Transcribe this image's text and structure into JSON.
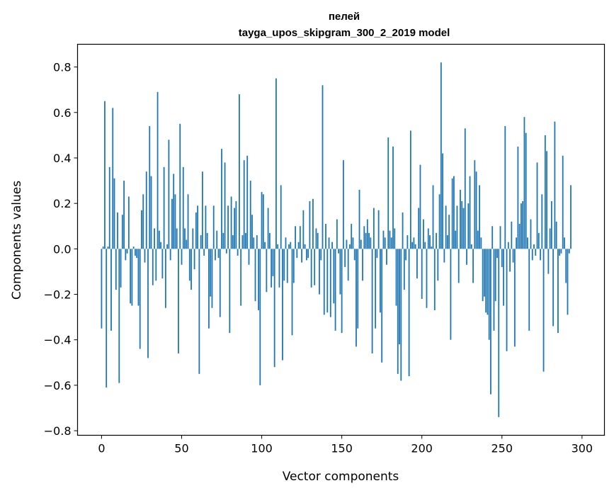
{
  "chart_data": {
    "type": "bar",
    "title": "пелей",
    "subtitle": "tayga_upos_skipgram_300_2_2019 model",
    "xlabel": "Vector components",
    "ylabel": "Components values",
    "xlim": [
      -15,
      314
    ],
    "ylim": [
      -0.82,
      0.9
    ],
    "xticks": [
      0,
      50,
      100,
      150,
      200,
      250,
      300
    ],
    "yticks": [
      -0.8,
      -0.6,
      -0.4,
      -0.2,
      0.0,
      0.2,
      0.4,
      0.6,
      0.8
    ],
    "ytick_labels": [
      "−0.8",
      "−0.6",
      "−0.4",
      "−0.2",
      "0.0",
      "0.2",
      "0.4",
      "0.6",
      "0.8"
    ],
    "grid": false,
    "bar_color": "#1f77b4",
    "values": [
      -0.35,
      0.01,
      0.65,
      -0.61,
      0.01,
      0.36,
      -0.36,
      0.62,
      0.31,
      -0.18,
      0.16,
      -0.59,
      -0.17,
      0.15,
      0.3,
      -0.05,
      -0.02,
      0.23,
      -0.24,
      -0.25,
      0.01,
      -0.03,
      -0.04,
      -0.25,
      -0.44,
      0.17,
      0.24,
      -0.06,
      0.34,
      -0.48,
      0.54,
      0.32,
      -0.16,
      0.09,
      -0.14,
      0.69,
      0.08,
      0.03,
      -0.13,
      0.36,
      -0.26,
      0.02,
      0.48,
      -0.05,
      0.22,
      0.33,
      0.24,
      0.09,
      -0.46,
      0.55,
      -0.07,
      0.36,
      0.09,
      0.04,
      0.24,
      -0.14,
      -0.18,
      0.09,
      -0.09,
      0.16,
      0.19,
      -0.55,
      0.06,
      0.34,
      -0.03,
      0.19,
      0.07,
      -0.35,
      -0.21,
      -0.26,
      0.19,
      -0.05,
      0.08,
      -0.04,
      -0.3,
      0.44,
      0.07,
      0.38,
      -0.02,
      0.19,
      -0.37,
      0.23,
      0.06,
      0.18,
      0.21,
      -0.03,
      0.68,
      -0.25,
      0.06,
      0.39,
      0.07,
      0.41,
      -0.07,
      0.3,
      0.15,
      0.05,
      -0.23,
      0.06,
      -0.27,
      -0.6,
      0.25,
      0.24,
      0.03,
      -0.19,
      0.18,
      0.07,
      -0.17,
      -0.12,
      -0.52,
      0.75,
      0.02,
      -0.17,
      0.28,
      -0.49,
      -0.14,
      0.05,
      -0.15,
      0.02,
      0.03,
      -0.38,
      -0.15,
      0.1,
      -0.04,
      0.03,
      0.1,
      -0.06,
      0.17,
      0.02,
      -0.05,
      -0.04,
      0.21,
      -0.17,
      0.22,
      -0.16,
      0.09,
      0.07,
      -0.2,
      -0.05,
      0.72,
      -0.29,
      0.11,
      -0.28,
      0.05,
      -0.3,
      0.03,
      -0.24,
      -0.36,
      0.13,
      -0.02,
      -0.2,
      -0.37,
      0.39,
      -0.08,
      0.04,
      -0.14,
      0.02,
      0.11,
      0.05,
      -0.05,
      -0.43,
      -0.35,
      0.26,
      0.04,
      -0.14,
      0.1,
      0.07,
      0.13,
      0.07,
      0.05,
      -0.46,
      0.18,
      -0.35,
      -0.04,
      0.17,
      -0.28,
      -0.5,
      0.08,
      0.05,
      -0.07,
      0.49,
      0.08,
      0.05,
      0.45,
      0.09,
      -0.25,
      -0.55,
      -0.42,
      -0.58,
      0.16,
      -0.18,
      -0.05,
      0.06,
      -0.56,
      0.52,
      0.03,
      0.05,
      0.02,
      -0.13,
      0.18,
      0.37,
      -0.22,
      0.13,
      0.03,
      -0.26,
      0.09,
      0.06,
      0.01,
      0.28,
      -0.27,
      0.07,
      -0.14,
      0.24,
      0.82,
      0.42,
      -0.06,
      0.19,
      0.06,
      0.15,
      -0.4,
      0.31,
      0.32,
      0.08,
      0.19,
      -0.15,
      0.26,
      0.21,
      0.18,
      0.53,
      -0.07,
      0.2,
      0.32,
      0.02,
      -0.15,
      0.39,
      0.34,
      0.08,
      0.28,
      0.05,
      -0.23,
      -0.21,
      -0.28,
      -0.29,
      -0.4,
      -0.64,
      0.1,
      -0.36,
      -0.23,
      -0.04,
      -0.74,
      0.1,
      -0.08,
      -0.25,
      0.54,
      -0.45,
      0.03,
      -0.1,
      0.12,
      -0.06,
      -0.43,
      0.05,
      0.45,
      0.11,
      0.2,
      0.21,
      0.58,
      0.51,
      0.05,
      -0.36,
      0.13,
      -0.05,
      0.02,
      -0.03,
      0.38,
      0.07,
      -0.05,
      0.24,
      -0.54,
      0.5,
      0.43,
      -0.11,
      0.09,
      0.21,
      -0.34,
      0.56,
      0.12,
      -0.37,
      -0.03,
      -0.02,
      0.41,
      0.05,
      -0.15,
      -0.29,
      -0.02,
      0.28
    ]
  }
}
